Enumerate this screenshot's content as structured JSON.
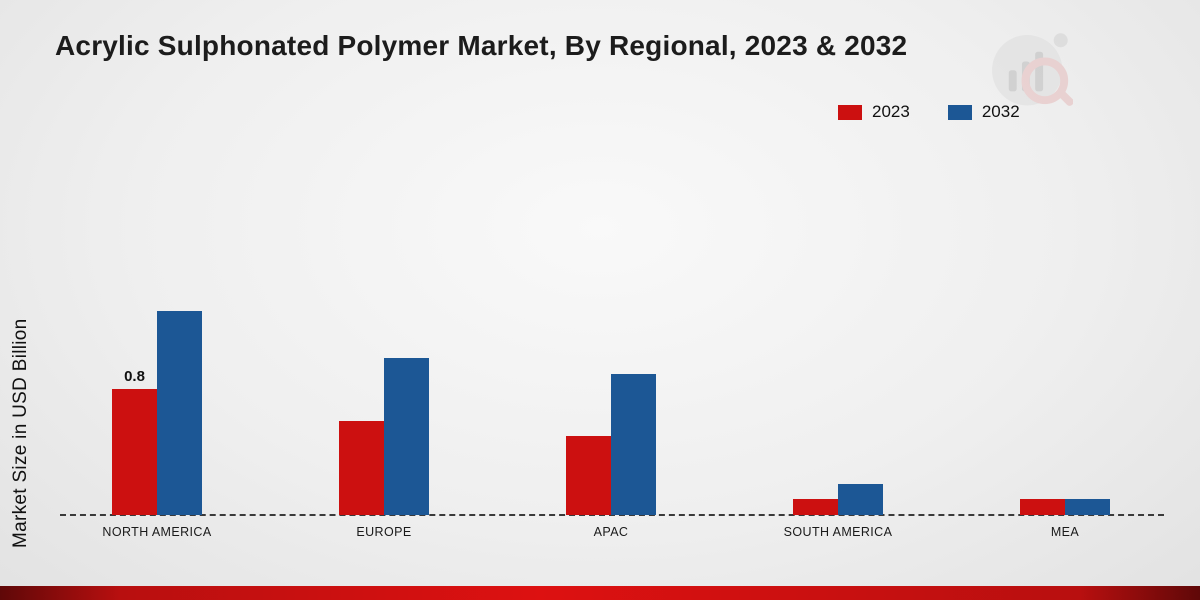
{
  "title": "Acrylic Sulphonated Polymer Market, By Regional, 2023 & 2032",
  "ylabel": "Market Size in USD Billion",
  "legend": {
    "items": [
      {
        "label": "2023",
        "color": "#cc1010"
      },
      {
        "label": "2032",
        "color": "#1c5795"
      }
    ]
  },
  "chart_data": {
    "type": "bar",
    "title": "Acrylic Sulphonated Polymer Market, By Regional, 2023 & 2032",
    "xlabel": "",
    "ylabel": "Market Size in USD Billion",
    "categories": [
      "NORTH AMERICA",
      "EUROPE",
      "APAC",
      "SOUTH AMERICA",
      "MEA"
    ],
    "series": [
      {
        "name": "2023",
        "color": "#cc1010",
        "values": [
          0.8,
          0.6,
          0.5,
          0.1,
          0.1
        ],
        "labels": [
          "0.8",
          "",
          "",
          "",
          ""
        ]
      },
      {
        "name": "2032",
        "color": "#1c5795",
        "values": [
          1.3,
          1.0,
          0.9,
          0.2,
          0.1
        ],
        "labels": [
          "",
          "",
          "",
          "",
          ""
        ]
      }
    ],
    "ylim": [
      0,
      1.5
    ],
    "grid": false,
    "baseline_style": "dashed",
    "legend_position": "top-right",
    "annotations": [
      {
        "series": "2023",
        "category": "NORTH AMERICA",
        "text": "0.8"
      }
    ]
  }
}
